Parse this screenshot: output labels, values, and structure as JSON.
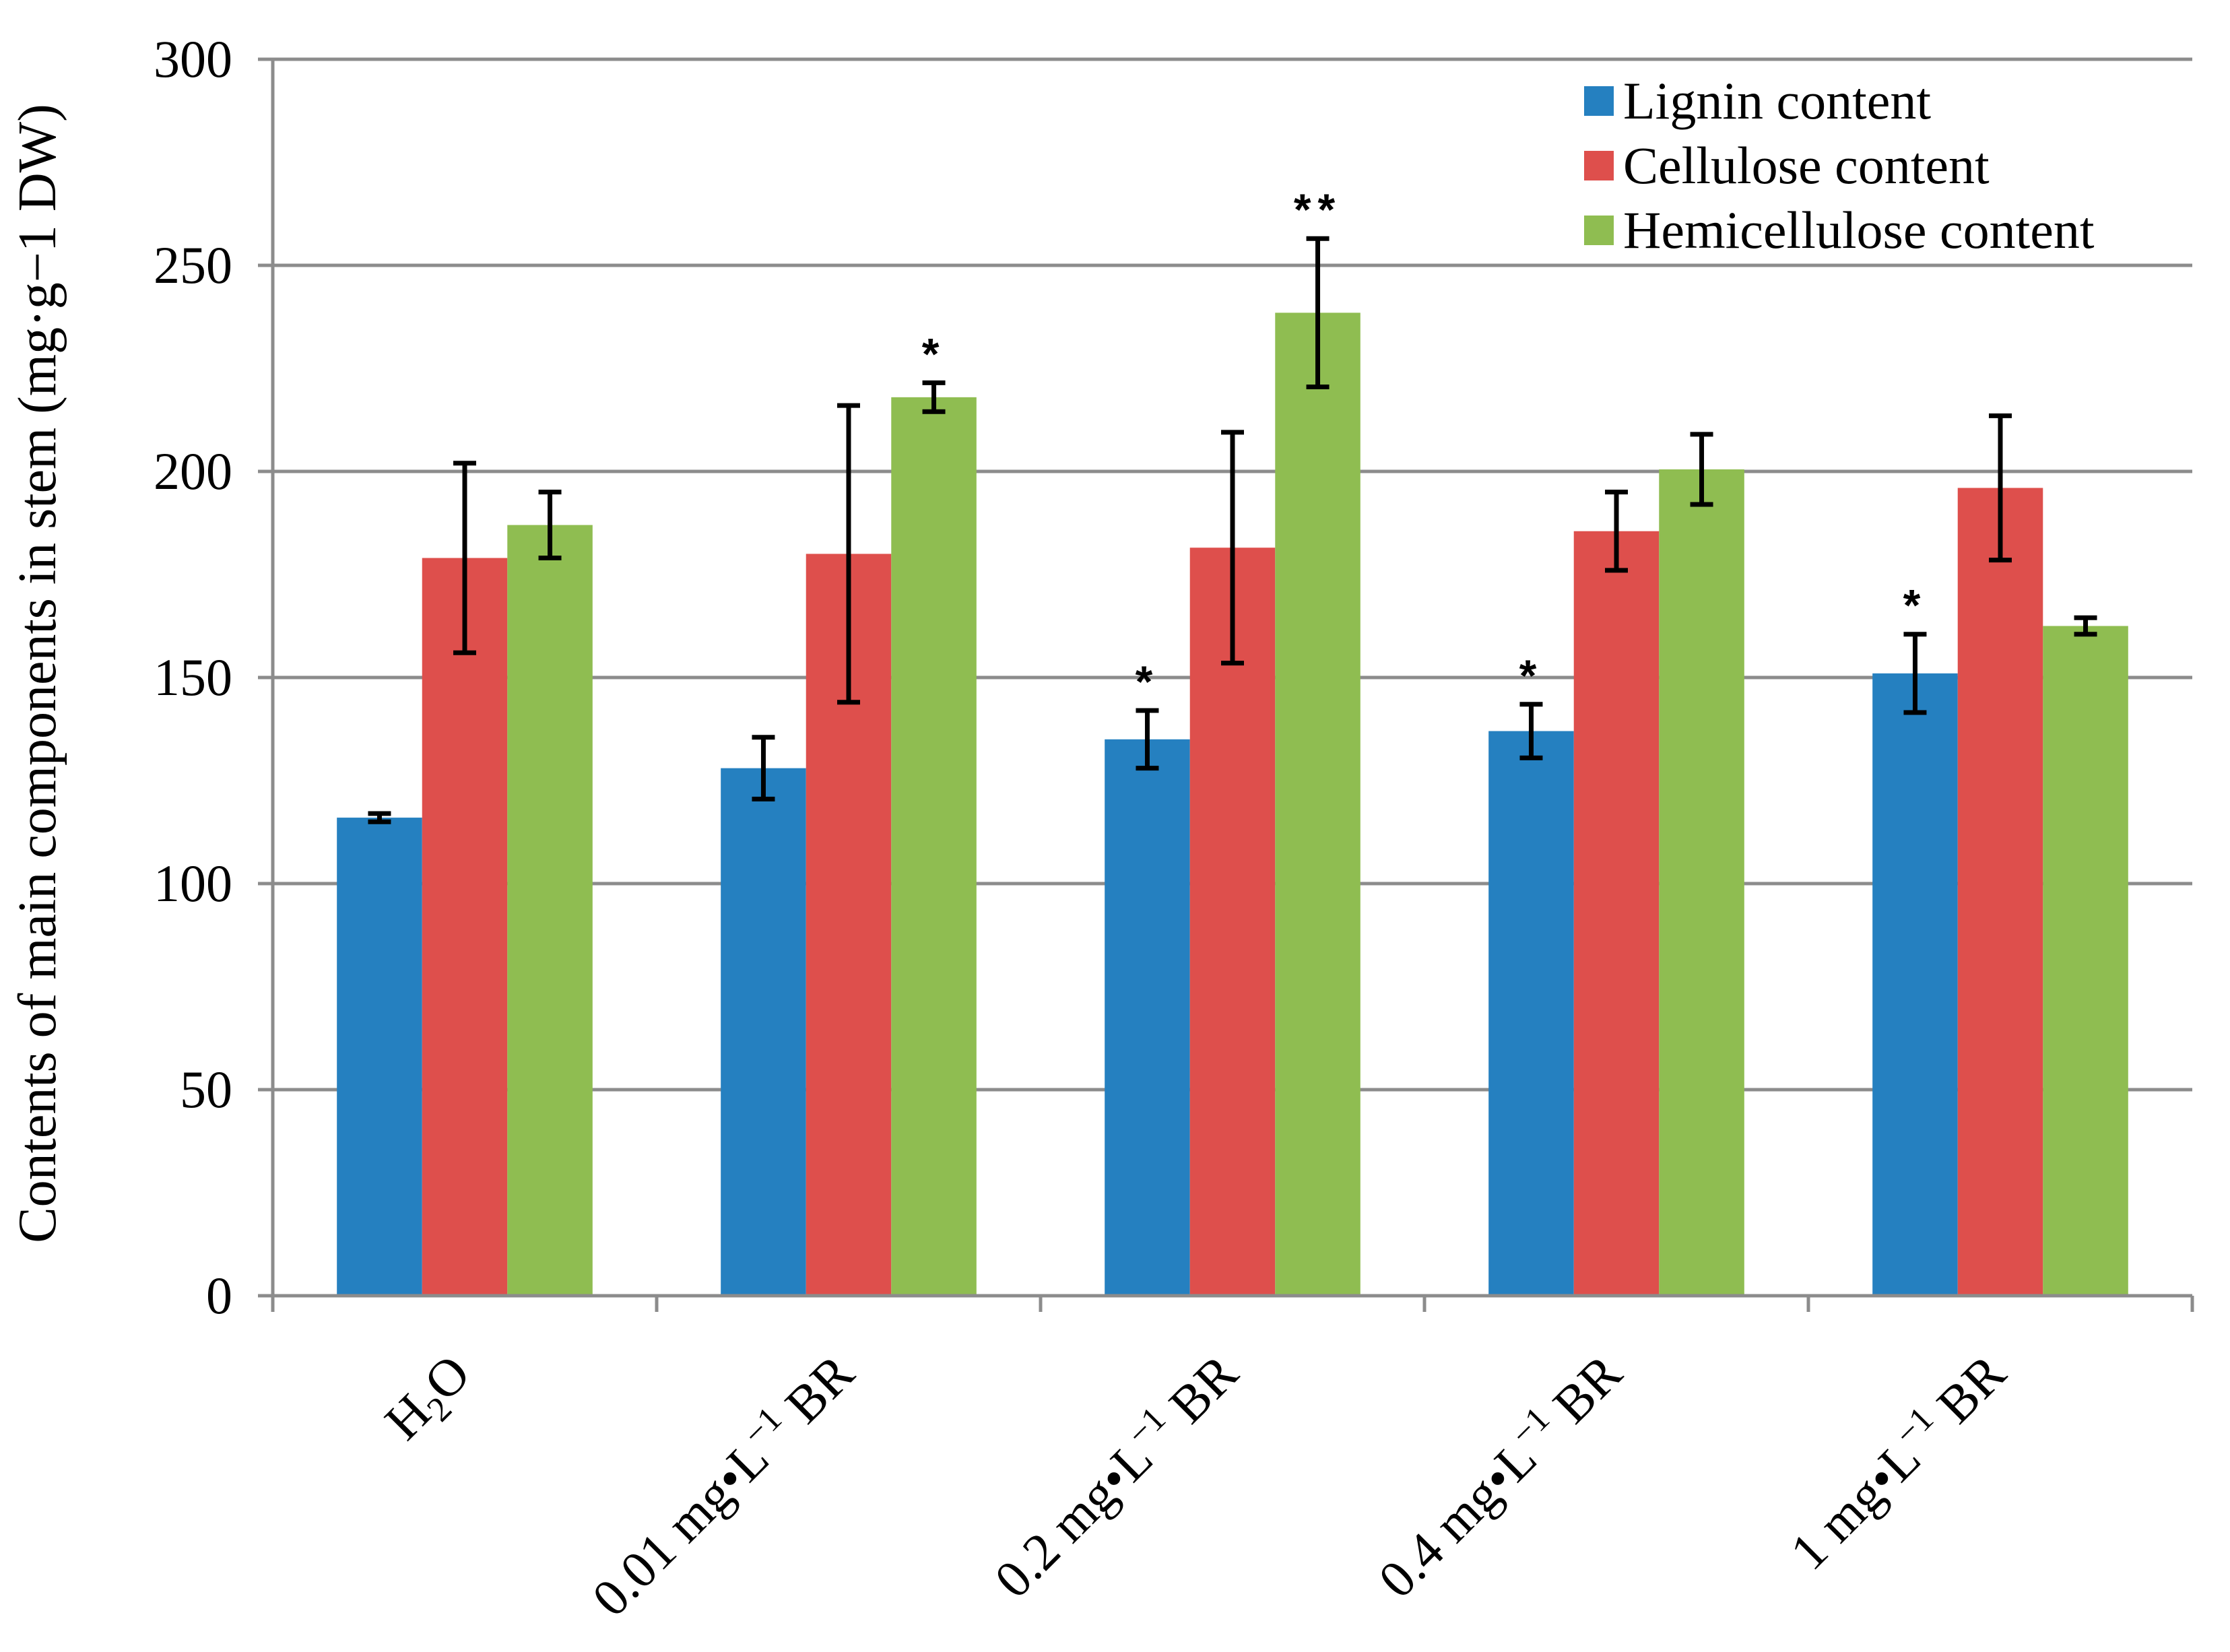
{
  "chart_data": {
    "type": "bar",
    "title": "",
    "ylabel": "Contents of main components in stem (mg·g−1 DW)",
    "xlabel": "",
    "ylim": [
      0,
      300
    ],
    "yticks": [
      0,
      50,
      100,
      150,
      200,
      250,
      300
    ],
    "grid": true,
    "legend_position": "top-right",
    "categories": [
      {
        "parts": [
          {
            "t": "H"
          },
          {
            "t": "2",
            "sub": true
          },
          {
            "t": "O"
          }
        ]
      },
      {
        "parts": [
          {
            "t": "0.01 mg•L"
          },
          {
            "t": "−1",
            "sup": true
          },
          {
            "t": " BR"
          }
        ]
      },
      {
        "parts": [
          {
            "t": "0.2 mg•L"
          },
          {
            "t": "−1",
            "sup": true
          },
          {
            "t": " BR"
          }
        ]
      },
      {
        "parts": [
          {
            "t": "0.4 mg•L"
          },
          {
            "t": "−1",
            "sup": true
          },
          {
            "t": " BR"
          }
        ]
      },
      {
        "parts": [
          {
            "t": "1 mg•L"
          },
          {
            "t": "−1",
            "sup": true
          },
          {
            "t": " BR"
          }
        ]
      }
    ],
    "series": [
      {
        "name": "Lignin content",
        "color": "#2580C0",
        "values": [
          116,
          128,
          135,
          137,
          151
        ],
        "errors": [
          1,
          7.5,
          7,
          6.5,
          9.5
        ],
        "significance": [
          "",
          "",
          "*",
          "*",
          "*"
        ]
      },
      {
        "name": "Cellulose content",
        "color": "#DE4F4C",
        "values": [
          179,
          180,
          181.5,
          185.5,
          196
        ],
        "errors": [
          23,
          36,
          28,
          9.5,
          17.5
        ],
        "significance": [
          "",
          "",
          "",
          "",
          ""
        ]
      },
      {
        "name": "Hemicellulose content",
        "color": "#8FBD51",
        "values": [
          187,
          218,
          238.5,
          200.5,
          162.5
        ],
        "errors": [
          8,
          3.5,
          18,
          8.5,
          2
        ],
        "significance": [
          "",
          "*",
          "**",
          "",
          ""
        ]
      }
    ]
  }
}
